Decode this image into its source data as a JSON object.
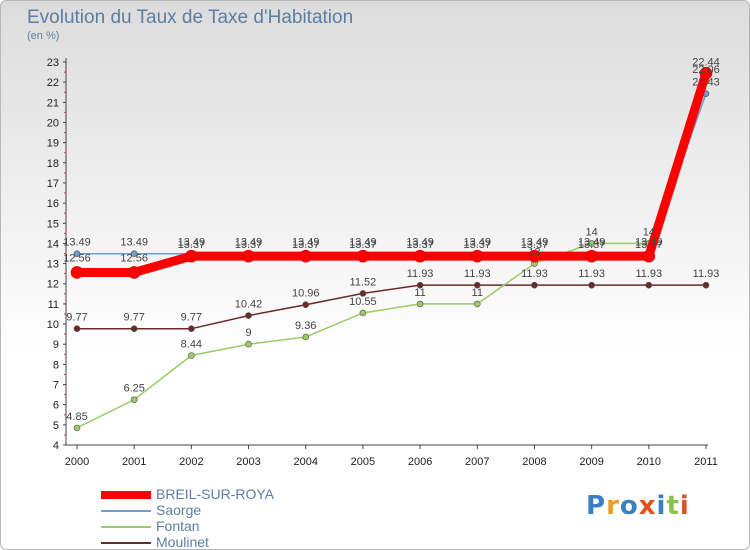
{
  "chart_data": {
    "type": "line",
    "title": "Evolution du Taux de Taxe d'Habitation",
    "subtitle": "(en %)",
    "xlabel": "",
    "ylabel": "",
    "x": [
      "2000",
      "2001",
      "2002",
      "2003",
      "2004",
      "2005",
      "2006",
      "2007",
      "2008",
      "2009",
      "2010",
      "2011"
    ],
    "ylim": [
      4,
      23
    ],
    "yticks": [
      4,
      5,
      6,
      7,
      8,
      9,
      10,
      11,
      12,
      13,
      14,
      15,
      16,
      17,
      18,
      19,
      20,
      21,
      22,
      23
    ],
    "grid": false,
    "legend_position": "bottom-left",
    "series": [
      {
        "name": "BREIL-SUR-ROYA",
        "color": "#ff0000",
        "values": [
          12.56,
          12.56,
          13.37,
          13.37,
          13.37,
          13.37,
          13.37,
          13.37,
          13.37,
          13.37,
          13.37,
          22.44
        ],
        "labels": [
          "12.56",
          "12.56",
          "13.37",
          "13.37",
          "13.37",
          "13.37",
          "13.37",
          "13.37",
          "13.37",
          "13.37",
          "13.37",
          "22.44"
        ]
      },
      {
        "name": "Saorge",
        "color": "#6d9ccf",
        "values": [
          13.49,
          13.49,
          13.49,
          13.49,
          13.49,
          13.49,
          13.49,
          13.49,
          13.49,
          13.49,
          13.49,
          21.43
        ],
        "labels": [
          "13.49",
          "13.49",
          "13.49",
          "13.49",
          "13.49",
          "13.49",
          "13.49",
          "13.49",
          "13.49",
          "13.49",
          "13.49",
          "21.43"
        ]
      },
      {
        "name": "Fontan",
        "color": "#99cc66",
        "values": [
          4.85,
          6.25,
          8.44,
          9,
          9.36,
          10.55,
          11,
          11,
          13,
          14,
          14,
          22.06
        ],
        "labels": [
          "4.85",
          "6.25",
          "8.44",
          "9",
          "9.36",
          "10.55",
          "11",
          "11",
          "13",
          "14",
          "14",
          "22.06"
        ]
      },
      {
        "name": "Moulinet",
        "color": "#6b2a2a",
        "values": [
          9.77,
          9.77,
          9.77,
          10.42,
          10.96,
          11.52,
          11.93,
          11.93,
          11.93,
          11.93,
          11.93,
          11.93
        ],
        "labels": [
          "9.77",
          "9.77",
          "9.77",
          "10.42",
          "10.96",
          "11.52",
          "11.93",
          "11.93",
          "11.93",
          "11.93",
          "11.93",
          "11.93"
        ]
      }
    ]
  },
  "legend": {
    "items": [
      "BREIL-SUR-ROYA",
      "Saorge",
      "Fontan",
      "Moulinet"
    ],
    "colors": [
      "#ff0000",
      "#6d9ccf",
      "#99cc66",
      "#6b2a2a"
    ]
  },
  "logo": {
    "text": "Proxiti"
  }
}
